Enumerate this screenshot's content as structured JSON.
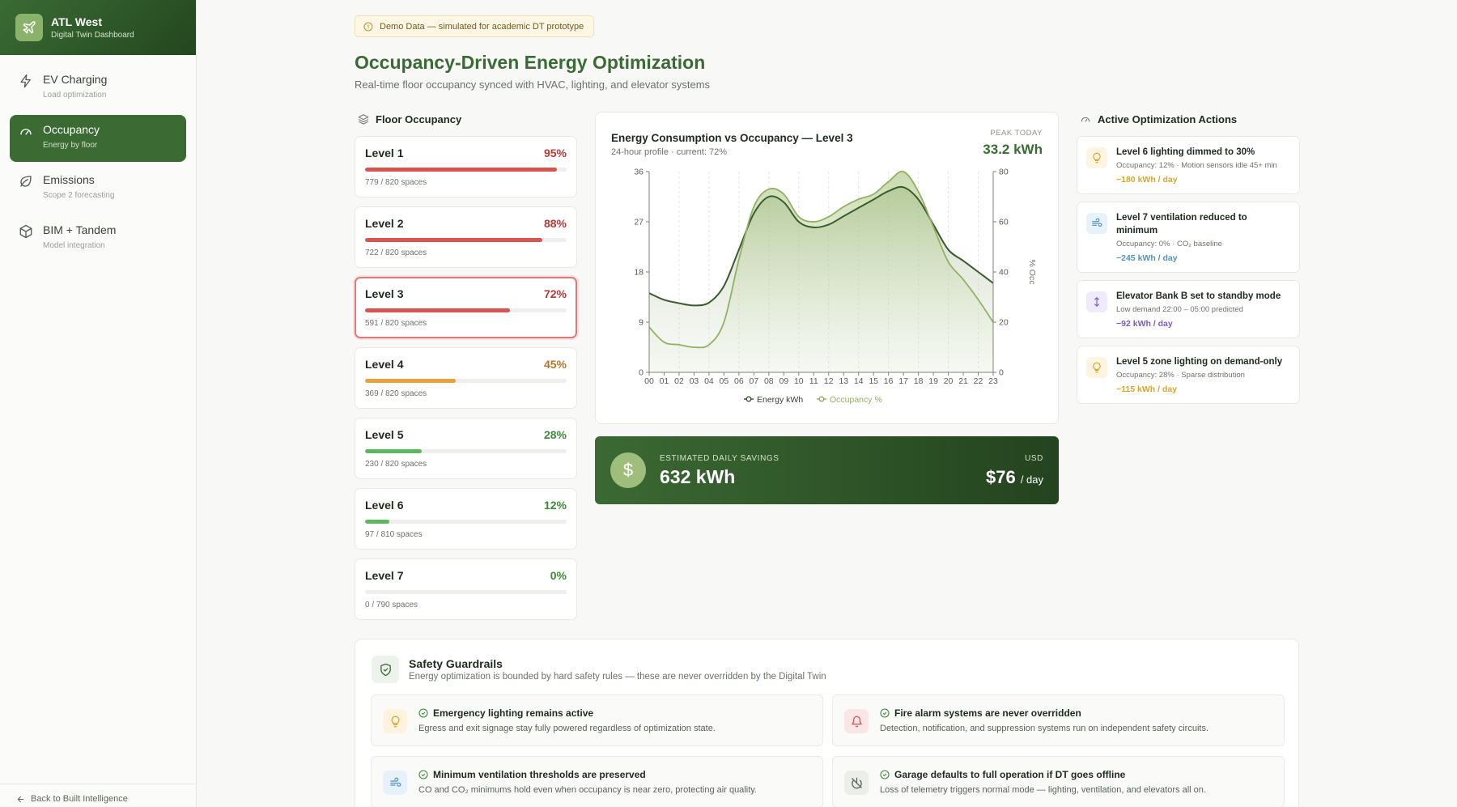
{
  "sidebar": {
    "brand_title": "ATL West",
    "brand_sub": "Digital Twin Dashboard",
    "items": [
      {
        "label": "EV Charging",
        "sub": "Load optimization"
      },
      {
        "label": "Occupancy",
        "sub": "Energy by floor"
      },
      {
        "label": "Emissions",
        "sub": "Scope 2 forecasting"
      },
      {
        "label": "BIM + Tandem",
        "sub": "Model integration"
      }
    ],
    "back_label": "Back to Built Intelligence"
  },
  "header": {
    "demo_badge": "Demo Data — simulated for academic DT prototype",
    "title": "Occupancy-Driven Energy Optimization",
    "subtitle": "Real-time floor occupancy synced with HVAC, lighting, and elevator systems"
  },
  "floors": {
    "heading": "Floor Occupancy",
    "levels": [
      {
        "name": "Level 1",
        "pct_label": "95%",
        "pct": 95,
        "spaces": "779 / 820 spaces"
      },
      {
        "name": "Level 2",
        "pct_label": "88%",
        "pct": 88,
        "spaces": "722 / 820 spaces"
      },
      {
        "name": "Level 3",
        "pct_label": "72%",
        "pct": 72,
        "spaces": "591 / 820 spaces"
      },
      {
        "name": "Level 4",
        "pct_label": "45%",
        "pct": 45,
        "spaces": "369 / 820 spaces"
      },
      {
        "name": "Level 5",
        "pct_label": "28%",
        "pct": 28,
        "spaces": "230 / 820 spaces"
      },
      {
        "name": "Level 6",
        "pct_label": "12%",
        "pct": 12,
        "spaces": "97 / 810 spaces"
      },
      {
        "name": "Level 7",
        "pct_label": "0%",
        "pct": 0,
        "spaces": "0 / 790 spaces"
      }
    ],
    "colors": {
      "high": "#d9534f",
      "mid": "#e9a23b",
      "low": "#5cb85c",
      "high_text": "#b33a36",
      "mid_text": "#b8762a",
      "low_text": "#3e8a3a"
    }
  },
  "chart": {
    "title": "Energy Consumption vs Occupancy — Level 3",
    "subtitle": "24-hour profile · current: 72%",
    "peak_label": "PEAK TODAY",
    "peak_value": "33.2 kWh"
  },
  "chart_data": {
    "type": "area",
    "x": [
      "00",
      "01",
      "02",
      "03",
      "04",
      "05",
      "06",
      "07",
      "08",
      "09",
      "10",
      "11",
      "12",
      "13",
      "14",
      "15",
      "16",
      "17",
      "18",
      "19",
      "20",
      "21",
      "22",
      "23"
    ],
    "series": [
      {
        "name": "Energy kWh",
        "axis": "left",
        "color": "#3a5a30",
        "values": [
          14.2,
          13,
          12.4,
          12,
          12.5,
          15.5,
          22,
          28.5,
          31.5,
          30.5,
          27,
          26,
          26.5,
          28,
          29.5,
          31,
          32.5,
          33.2,
          31,
          26.5,
          22,
          20,
          18,
          16
        ]
      },
      {
        "name": "Occupancy %",
        "axis": "right",
        "color": "#93b063",
        "values": [
          18,
          12,
          11,
          10,
          11,
          20,
          45,
          66,
          73,
          71,
          62,
          60,
          62,
          66,
          69,
          71,
          76,
          80,
          72,
          58,
          44,
          37,
          29,
          20
        ]
      }
    ],
    "y_left": {
      "ticks": [
        0,
        9,
        18,
        27,
        36
      ],
      "range": [
        0,
        36
      ]
    },
    "y_right": {
      "ticks": [
        0,
        20,
        40,
        60,
        80
      ],
      "range": [
        0,
        80
      ],
      "label": "% Occ"
    },
    "legend_position": "bottom-center",
    "grid": "vertical-dashed"
  },
  "savings": {
    "label": "ESTIMATED DAILY SAVINGS",
    "kwh": "632 kWh",
    "currency": "USD",
    "usd": "$76",
    "per": "/ day"
  },
  "actions": {
    "heading": "Active Optimization Actions",
    "items": [
      {
        "title": "Level 6 lighting dimmed to 30%",
        "meta": "Occupancy: 12% · Motion sensors idle 45+ min",
        "save": "−180 kWh / day",
        "icon": "bulb-icon",
        "color": "#d8a72a",
        "bg": "#fdf5e2"
      },
      {
        "title": "Level 7 ventilation reduced to minimum",
        "meta": "Occupancy: 0% · CO₂ baseline",
        "save": "−245 kWh / day",
        "icon": "wind-icon",
        "color": "#4f94c4",
        "bg": "#e8f2fa"
      },
      {
        "title": "Elevator Bank B set to standby mode",
        "meta": "Low demand 22:00 – 05:00 predicted",
        "save": "−92 kWh / day",
        "icon": "updown-icon",
        "color": "#7a5cc0",
        "bg": "#f0ebfa"
      },
      {
        "title": "Level 5 zone lighting on demand-only",
        "meta": "Occupancy: 28% · Sparse distribution",
        "save": "−115 kWh / day",
        "icon": "bulb-icon",
        "color": "#d8a72a",
        "bg": "#fdf5e2"
      }
    ]
  },
  "safety": {
    "title": "Safety Guardrails",
    "subtitle": "Energy optimization is bounded by hard safety rules — these are never overridden by the Digital Twin",
    "rules": [
      {
        "title": "Emergency lighting remains active",
        "desc": "Egress and exit signage stay fully powered regardless of optimization state."
      },
      {
        "title": "Fire alarm systems are never overridden",
        "desc": "Detection, notification, and suppression systems run on independent safety circuits."
      },
      {
        "title": "Minimum ventilation thresholds are preserved",
        "desc": "CO and CO₂ minimums hold even when occupancy is near zero, protecting air quality."
      },
      {
        "title": "Garage defaults to full operation if DT goes offline",
        "desc": "Loss of telemetry triggers normal mode — lighting, ventilation, and elevators all on."
      }
    ]
  }
}
